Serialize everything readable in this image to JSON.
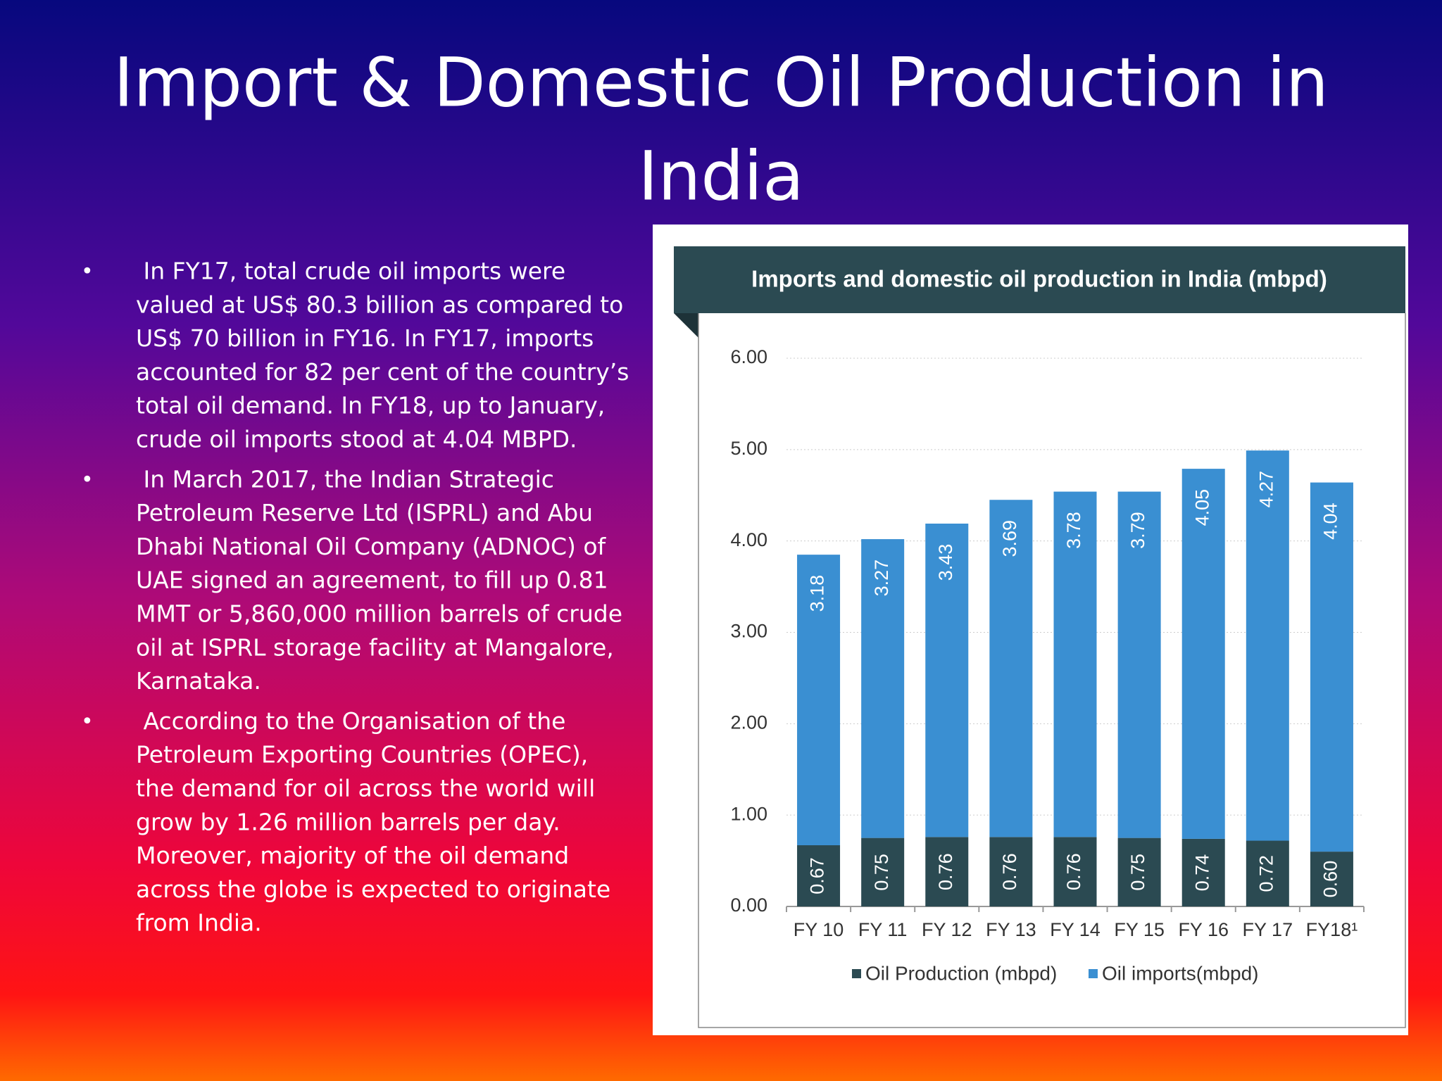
{
  "slide": {
    "title": [
      "Import & Domestic Oil Production in",
      "India"
    ],
    "bullets": [
      [
        " In FY17, total crude oil imports were",
        "valued at US$ 80.3 billion as compared to",
        "US$ 70 billion in FY16. In FY17, imports",
        "accounted for 82 per cent of the country’s",
        "total oil demand. In FY18, up to January,",
        "crude oil imports stood at 4.04 MBPD."
      ],
      [
        " In March 2017, the Indian Strategic",
        "Petroleum Reserve Ltd (ISPRL) and Abu",
        "Dhabi National Oil Company (ADNOC) of",
        "UAE signed an agreement, to fill up 0.81",
        "MMT or 5,860,000 million barrels of crude",
        "oil at ISPRL storage facility at Mangalore,",
        "Karnataka."
      ],
      [
        " According to the Organisation of the",
        "Petroleum Exporting Countries (OPEC),",
        "the demand for oil across the world will",
        "grow by 1.26 million barrels per day.",
        "Moreover, majority of the oil demand",
        "across the globe is expected to originate",
        "from India."
      ]
    ],
    "bullet_symbol": "•"
  },
  "chart_data": {
    "type": "stacked-bar",
    "title": "Imports and domestic oil production in India (mbpd)",
    "categories": [
      "FY 10",
      "FY 11",
      "FY 12",
      "FY 13",
      "FY 14",
      "FY 15",
      "FY 16",
      "FY 17",
      "FY18¹"
    ],
    "series": [
      {
        "name": "Oil Production (mbpd)",
        "color": "#2b4a52",
        "values": [
          0.67,
          0.75,
          0.76,
          0.76,
          0.76,
          0.75,
          0.74,
          0.72,
          0.6
        ],
        "value_labels": [
          "0.67",
          "0.75",
          "0.76",
          "0.76",
          "0.76",
          "0.75",
          "0.74",
          "0.72",
          "0.60"
        ]
      },
      {
        "name": "Oil imports(mbpd)",
        "color": "#3a8fd2",
        "values": [
          3.18,
          3.27,
          3.43,
          3.69,
          3.78,
          3.79,
          4.05,
          4.27,
          4.04
        ],
        "value_labels": [
          "3.18",
          "3.27",
          "3.43",
          "3.69",
          "3.78",
          "3.79",
          "4.05",
          "4.27",
          "4.04"
        ]
      }
    ],
    "ylim": [
      0,
      6
    ],
    "yticks": [
      {
        "value": 0,
        "label": "0.00"
      },
      {
        "value": 1,
        "label": "1.00"
      },
      {
        "value": 2,
        "label": "2.00"
      },
      {
        "value": 3,
        "label": "3.00"
      },
      {
        "value": 4,
        "label": "4.00"
      },
      {
        "value": 5,
        "label": "5.00"
      },
      {
        "value": 6,
        "label": "6.00"
      }
    ],
    "grid": true,
    "legend": "bottom"
  }
}
